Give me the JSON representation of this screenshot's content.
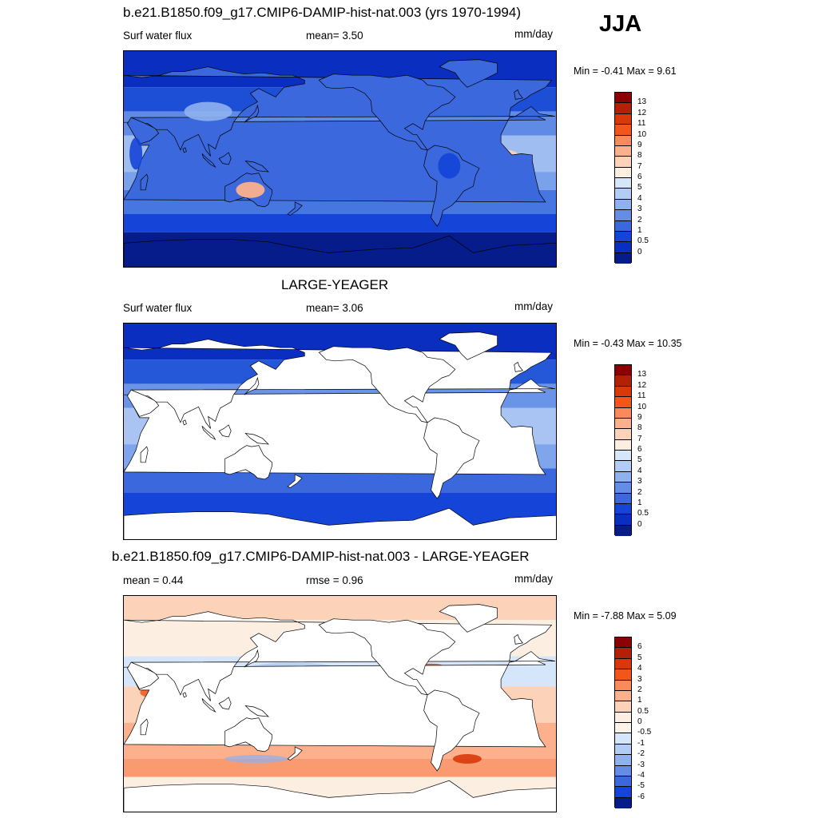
{
  "season": "JJA",
  "panels": [
    {
      "title": "b.e21.B1850.f09_g17.CMIP6-DAMIP-hist-nat.003 (yrs 1970-1994)",
      "left_label": "Surf water flux",
      "center_label": "mean=   3.50",
      "units": "mm/day",
      "minmax": "Min =  -0.41 Max =   9.61",
      "colorbar_labels": [
        "13",
        "12",
        "11",
        "10",
        "9",
        "8",
        "7",
        "6",
        "5",
        "4",
        "3",
        "2",
        "1",
        "0.5",
        "0"
      ],
      "colorbar_colors": [
        "#8b0000",
        "#b22005",
        "#d9380a",
        "#f2561a",
        "#fa8a5a",
        "#fcb08c",
        "#fcd2b8",
        "#fdeee2",
        "#d6e6fa",
        "#b2cdf5",
        "#8fb1ef",
        "#648ee6",
        "#3b69dd",
        "#1444d8",
        "#0a2ebf",
        "#061c8a"
      ],
      "ocean_only": false
    },
    {
      "title": "LARGE-YEAGER",
      "left_label": "Surf water flux",
      "center_label": "mean=   3.06",
      "units": "mm/day",
      "minmax": "Min =  -0.43 Max =  10.35",
      "colorbar_labels": [
        "13",
        "12",
        "11",
        "10",
        "9",
        "8",
        "7",
        "6",
        "5",
        "4",
        "3",
        "2",
        "1",
        "0.5",
        "0"
      ],
      "colorbar_colors": [
        "#8b0000",
        "#b22005",
        "#d9380a",
        "#f2561a",
        "#fa8a5a",
        "#fcb08c",
        "#fcd2b8",
        "#fdeee2",
        "#d6e6fa",
        "#b2cdf5",
        "#8fb1ef",
        "#648ee6",
        "#3b69dd",
        "#1444d8",
        "#0a2ebf",
        "#061c8a"
      ],
      "ocean_only": true
    },
    {
      "title": "b.e21.B1850.f09_g17.CMIP6-DAMIP-hist-nat.003 - LARGE-YEAGER",
      "left_label": "mean =   0.44",
      "center_label": "rmse =   0.96",
      "units": "mm/day",
      "minmax": "Min =  -7.88 Max =   5.09",
      "colorbar_labels": [
        "6",
        "5",
        "4",
        "3",
        "2",
        "1",
        "0.5",
        "0",
        "-0.5",
        "-1",
        "-2",
        "-3",
        "-4",
        "-5",
        "-6"
      ],
      "colorbar_colors": [
        "#8b0000",
        "#b22005",
        "#d9380a",
        "#f2561a",
        "#fa8a5a",
        "#fcb08c",
        "#fcd2b8",
        "#fdeee2",
        "#fdf3ea",
        "#d6e6fa",
        "#b2cdf5",
        "#8fb1ef",
        "#648ee6",
        "#3b69dd",
        "#1444d8",
        "#061c8a"
      ],
      "ocean_only": true
    }
  ]
}
